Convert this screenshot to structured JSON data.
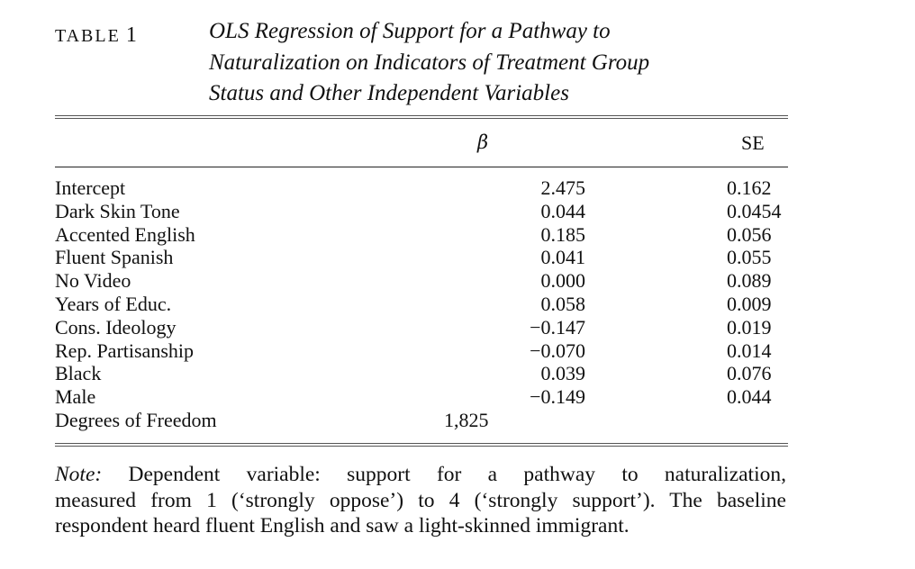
{
  "table_label": "TABLE",
  "table_number": "1",
  "caption_lines": [
    "OLS Regression of Support for a Pathway to",
    "Naturalization on Indicators of Treatment Group",
    "Status and Other Independent Variables"
  ],
  "headers": {
    "beta": "β",
    "se": "SE"
  },
  "rows": [
    {
      "label": "Intercept",
      "beta": "2.475",
      "se": "0.162"
    },
    {
      "label": "Dark Skin Tone",
      "beta": "0.044",
      "se": "0.0454"
    },
    {
      "label": "Accented English",
      "beta": "0.185",
      "se": "0.056"
    },
    {
      "label": "Fluent Spanish",
      "beta": "0.041",
      "se": "0.055"
    },
    {
      "label": "No Video",
      "beta": "0.000",
      "se": "0.089"
    },
    {
      "label": "Years of Educ.",
      "beta": "0.058",
      "se": "0.009"
    },
    {
      "label": "Cons. Ideology",
      "beta": "−0.147",
      "se": "0.019"
    },
    {
      "label": "Rep. Partisanship",
      "beta": "−0.070",
      "se": "0.014"
    },
    {
      "label": "Black",
      "beta": "0.039",
      "se": "0.076"
    },
    {
      "label": "Male",
      "beta": "−0.149",
      "se": "0.044"
    }
  ],
  "dof": {
    "label": "Degrees of Freedom",
    "value": "1,825"
  },
  "note": {
    "lead": "Note:",
    "lines": [
      "Dependent variable: support for a pathway to naturalization,",
      "measured from 1 (‘strongly oppose’) to 4 (‘strongly support’). The baseline",
      "respondent heard fluent English and saw a light-skinned immigrant."
    ]
  }
}
